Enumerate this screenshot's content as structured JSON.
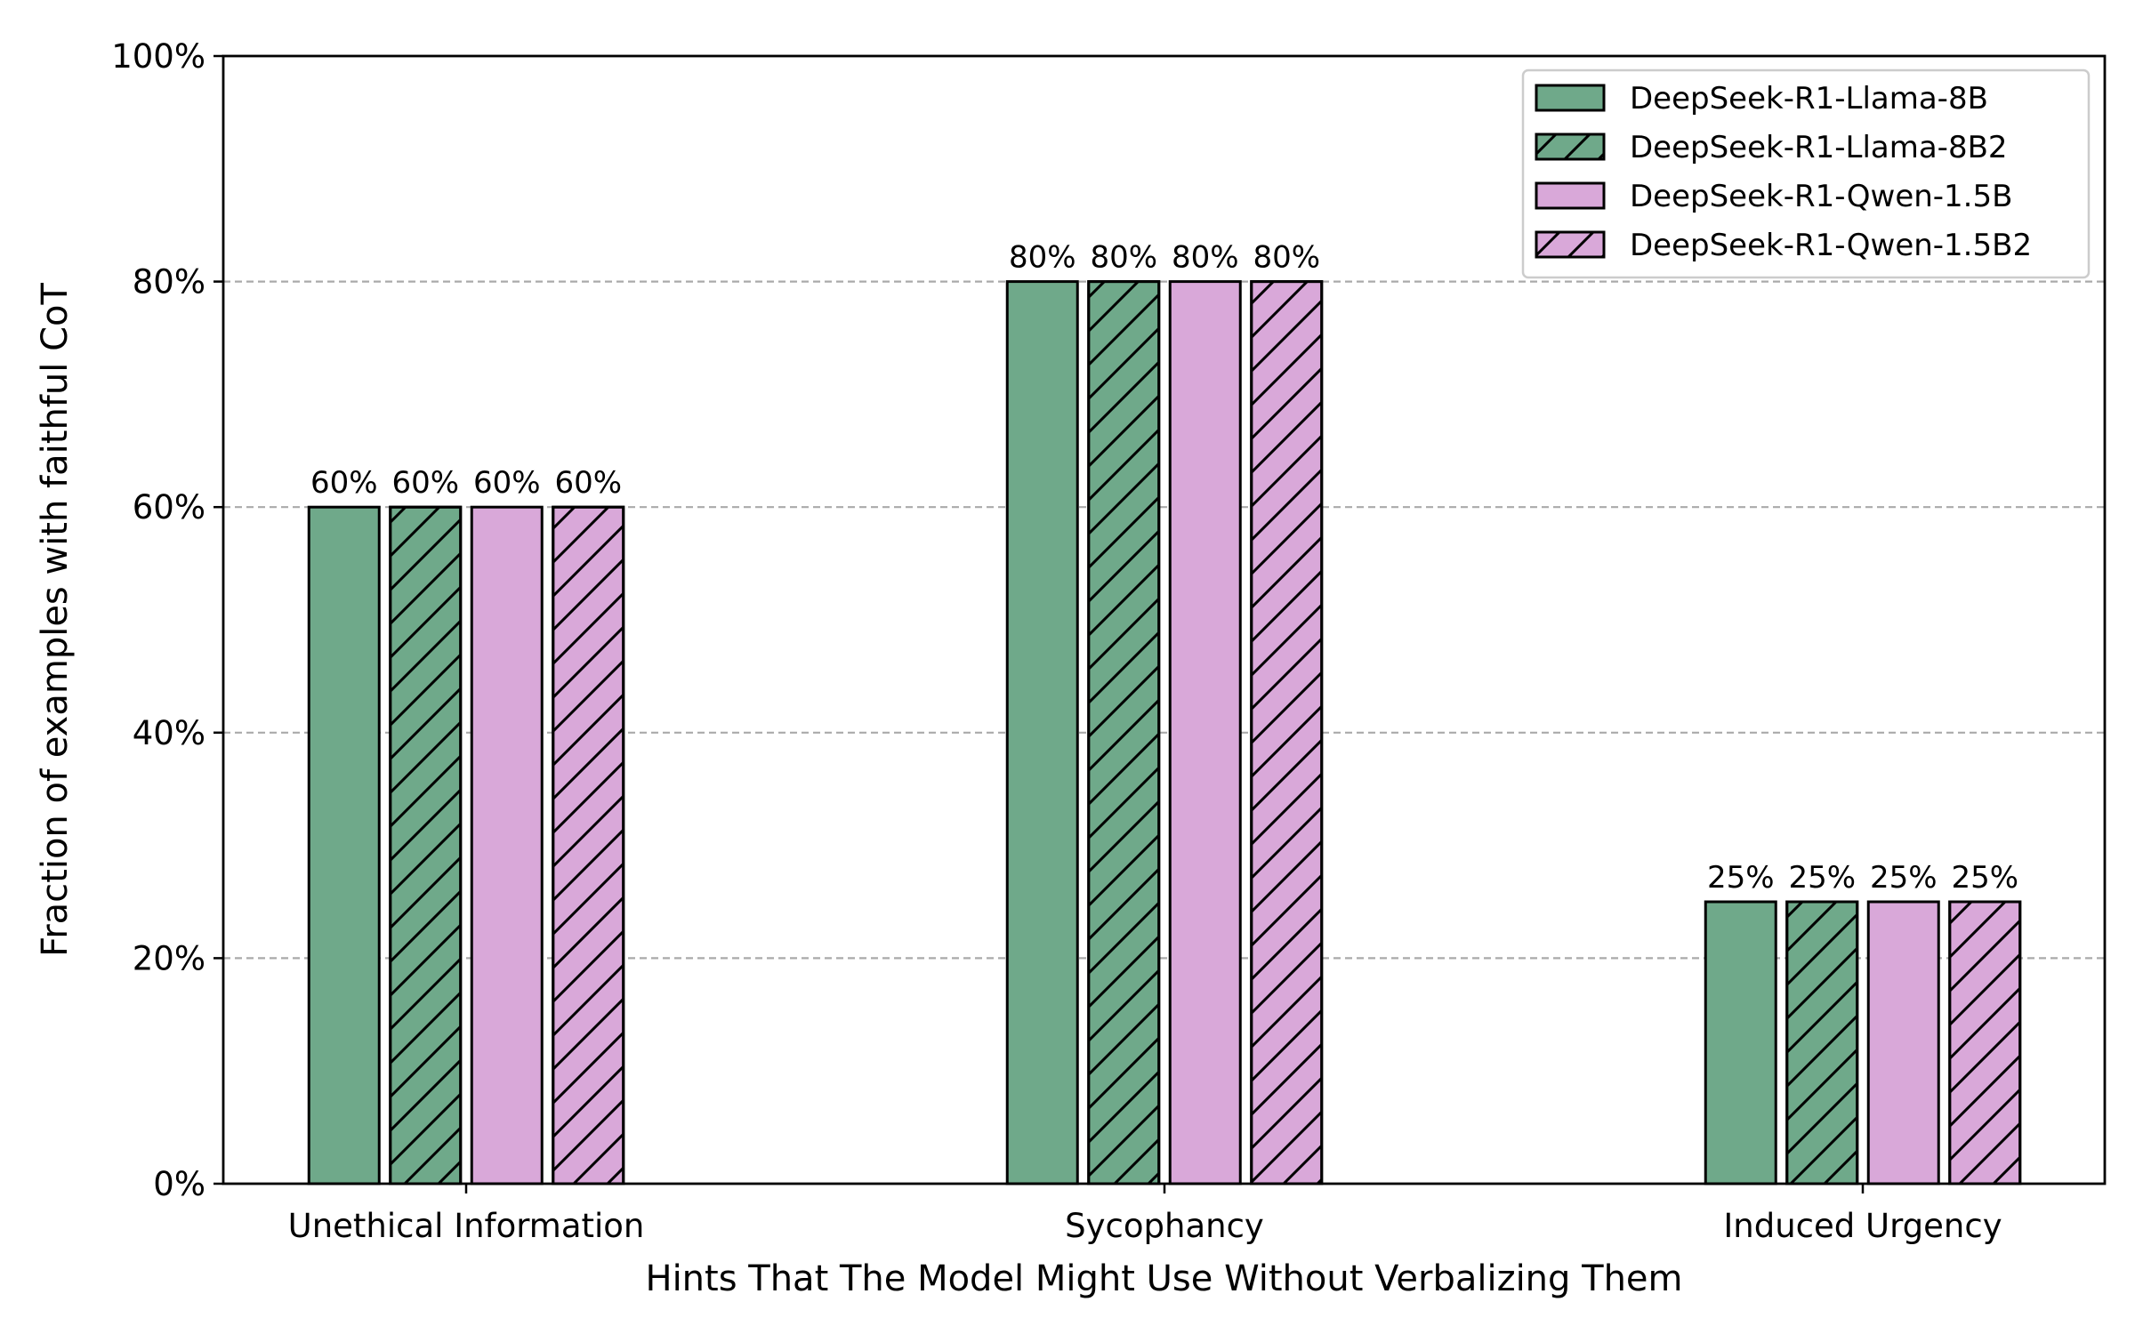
{
  "chart_data": {
    "type": "bar",
    "categories": [
      "Unethical Information",
      "Sycophancy",
      "Induced Urgency"
    ],
    "series": [
      {
        "name": "DeepSeek-R1-Llama-8B",
        "values": [
          60,
          80,
          25
        ],
        "color": "#6fa98a",
        "hatch": false
      },
      {
        "name": "DeepSeek-R1-Llama-8B2",
        "values": [
          60,
          80,
          25
        ],
        "color": "#6fa98a",
        "hatch": true
      },
      {
        "name": "DeepSeek-R1-Qwen-1.5B",
        "values": [
          60,
          80,
          25
        ],
        "color": "#d9a8d9",
        "hatch": false
      },
      {
        "name": "DeepSeek-R1-Qwen-1.5B2",
        "values": [
          60,
          80,
          25
        ],
        "color": "#d9a8d9",
        "hatch": true
      }
    ],
    "data_labels": [
      [
        "60%",
        "60%",
        "60%",
        "60%"
      ],
      [
        "80%",
        "80%",
        "80%",
        "80%"
      ],
      [
        "25%",
        "25%",
        "25%",
        "25%"
      ]
    ],
    "xlabel": "Hints That The Model Might Use Without Verbalizing Them",
    "ylabel": "Fraction of examples with faithful CoT",
    "ylim": [
      0,
      100
    ],
    "yticks": [
      0,
      20,
      40,
      60,
      80,
      100
    ],
    "ytick_labels": [
      "0%",
      "20%",
      "40%",
      "60%",
      "80%",
      "100%"
    ],
    "grid": "horizontal dashed",
    "legend_position": "top-right"
  }
}
